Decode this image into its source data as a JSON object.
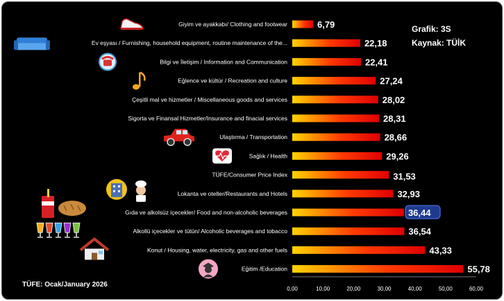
{
  "chart_data": {
    "type": "bar",
    "orientation": "horizontal",
    "categories": [
      "Giyim ve ayakkabı/ Clothing and footwear",
      "Ev eşyası / Furnishing, household equipment, routine maintenance of the...",
      "Bilgi ve İletişim / Information and Communication",
      "Eğlence ve kültür / Recreation and culture",
      "Çeşitli mal ve hizmetler / Miscellaneous goods and services",
      "Sigorta ve Finansal Hizmetler/Insurance and finacial services",
      "Ulaştırma / Transportation",
      "Sağlık / Health",
      "TÜFE/Consumer Price Index",
      "Lokanta ve oteller/Restaurants and Hotels",
      "Gıda ve alkolsüz içecekler/ Food and non-alcoholic beverages",
      "Alkollü içecekler ve tütün/ Alcoholic beverages and tobacco",
      "Konut / Housing, water, electricity, gas and other fuels",
      "Eğitim /Education"
    ],
    "values": [
      6.79,
      22.18,
      22.41,
      27.24,
      28.02,
      28.31,
      28.66,
      29.26,
      31.53,
      32.93,
      36.44,
      36.54,
      43.33,
      55.78
    ],
    "value_labels": [
      "6,79",
      "22,18",
      "22,41",
      "27,24",
      "28,02",
      "28,31",
      "28,66",
      "29,26",
      "31,53",
      "32,93",
      "36,44",
      "36,54",
      "43,33",
      "55,78"
    ],
    "icons": [
      "sneaker-icon",
      "sofa-icon",
      "telephone-icon",
      "music-note-icon",
      "",
      "",
      "car-icon",
      "heart-pulse-icon",
      "",
      "hotel-chef-icon",
      "food-drink-icon",
      "cocktail-glasses-icon",
      "house-icon",
      "graduate-icon"
    ],
    "highlight": {
      "cpi_index": 8,
      "food_index": 10
    },
    "xlim": [
      0,
      60
    ],
    "xticks": [
      "0,00",
      "10,00",
      "20,00",
      "30,00",
      "40,00",
      "50,00",
      "60,00"
    ],
    "grid": false,
    "colors": {
      "bar_start": "#ffd400",
      "bar_mid": "#ff3a00",
      "bar_end": "#e00000",
      "cpi_label": "#ffff40",
      "food_label_bg": "#1f3b8f",
      "background": "#000000",
      "text": "#ffffff"
    }
  },
  "info": {
    "grafik": "Grafik: 3S",
    "kaynak": "Kaynak: TÜİK",
    "footer": "TÜFE: Ocak/January 2026"
  }
}
